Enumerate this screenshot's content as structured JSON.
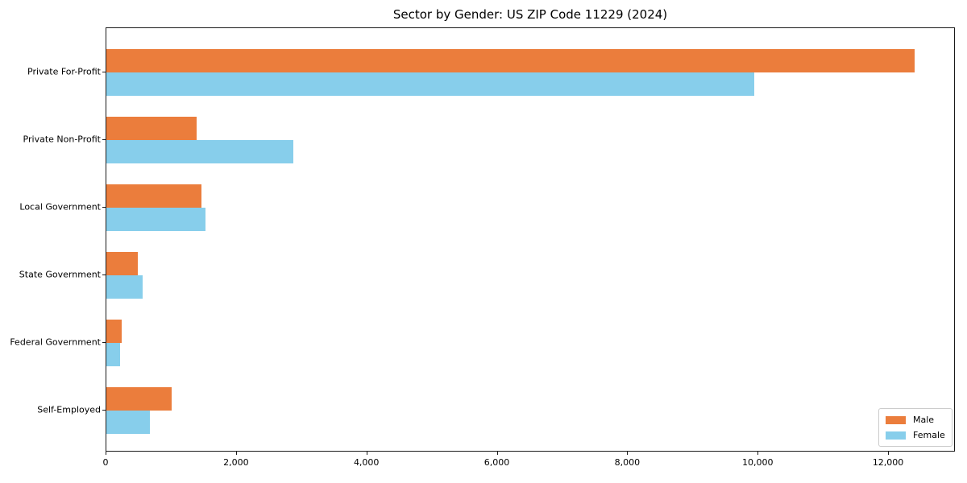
{
  "chart_data": {
    "type": "bar",
    "orientation": "horizontal",
    "title": "Sector by Gender: US ZIP Code 11229 (2024)",
    "categories": [
      "Private For-Profit",
      "Private Non-Profit",
      "Local Government",
      "State Government",
      "Federal Government",
      "Self-Employed"
    ],
    "series": [
      {
        "name": "Male",
        "color": "#eb7d3c",
        "values": [
          12400,
          1390,
          1460,
          480,
          235,
          1000
        ]
      },
      {
        "name": "Female",
        "color": "#87ceeb",
        "values": [
          9930,
          2870,
          1520,
          560,
          205,
          670
        ]
      }
    ],
    "xlabel": "",
    "ylabel": "",
    "xlim": [
      0,
      13000
    ],
    "x_ticks": [
      0,
      2000,
      4000,
      6000,
      8000,
      10000,
      12000
    ],
    "x_tick_labels": [
      "0",
      "2,000",
      "4,000",
      "6,000",
      "8,000",
      "10,000",
      "12,000"
    ],
    "grid": false,
    "legend_position": "lower right",
    "background_color": "#ffffff",
    "spine_color": "#1a1a1a"
  }
}
